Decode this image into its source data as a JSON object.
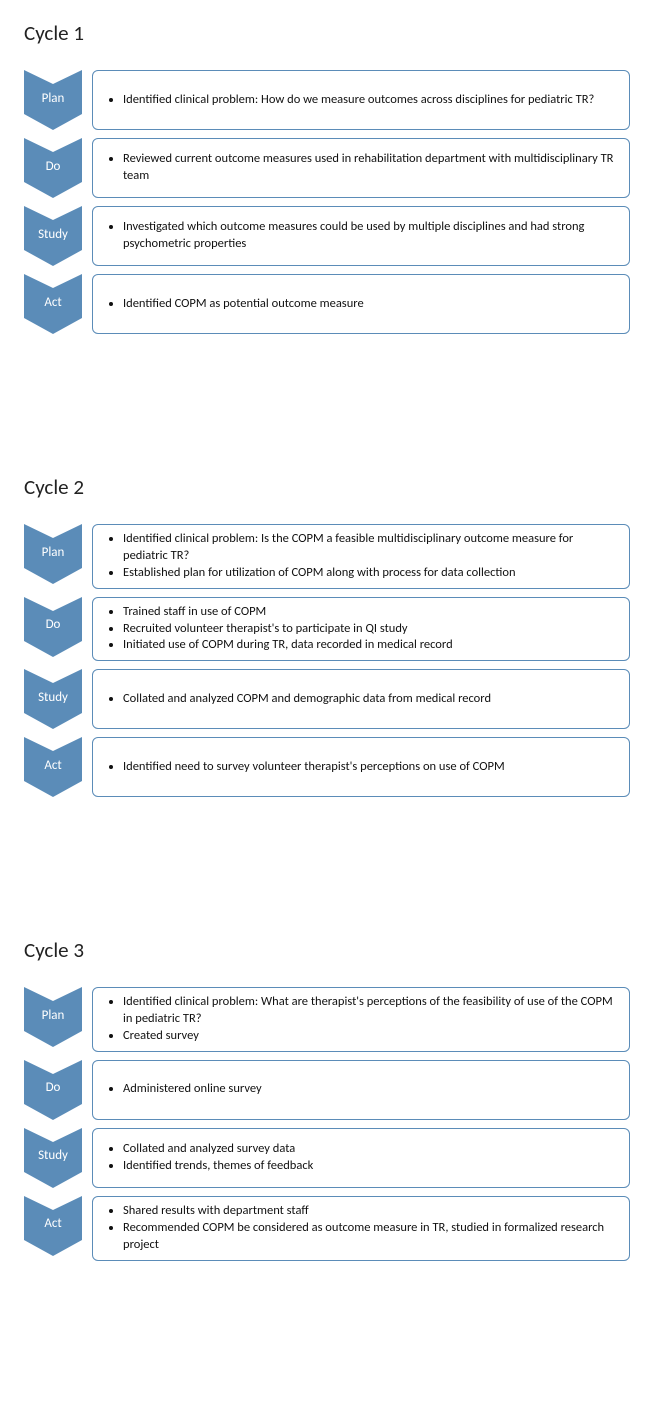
{
  "colors": {
    "chevron_fill": "#5b8cb8",
    "box_border": "#5b8cb8",
    "box_bg": "#ffffff",
    "chevron_text": "#ffffff",
    "title_color": "#222222",
    "bullet_color": "#111111"
  },
  "layout": {
    "chevron_width": 58,
    "chevron_height": 60,
    "box_radius": 6
  },
  "cycles": [
    {
      "title": "Cycle 1",
      "steps": [
        {
          "label": "Plan",
          "bullets": [
            "Identified clinical problem: How do we measure outcomes across disciplines for pediatric TR?"
          ]
        },
        {
          "label": "Do",
          "bullets": [
            "Reviewed current outcome measures used in rehabilitation department with multidisciplinary TR team"
          ]
        },
        {
          "label": "Study",
          "bullets": [
            "Investigated which outcome measures could be used by multiple disciplines and had strong psychometric properties"
          ]
        },
        {
          "label": "Act",
          "bullets": [
            "Identified COPM as potential outcome measure"
          ]
        }
      ]
    },
    {
      "title": "Cycle 2",
      "steps": [
        {
          "label": "Plan",
          "bullets": [
            "Identified clinical problem: Is the COPM a feasible multidisciplinary outcome measure for pediatric TR?",
            "Established plan for utilization of COPM along with process for data collection"
          ]
        },
        {
          "label": "Do",
          "bullets": [
            "Trained staff in use of COPM",
            "Recruited volunteer therapist's to participate in QI study",
            "Initiated use of COPM during TR, data recorded in medical record"
          ]
        },
        {
          "label": "Study",
          "bullets": [
            "Collated and analyzed  COPM and demographic data from medical record"
          ]
        },
        {
          "label": "Act",
          "bullets": [
            "Identified need to survey volunteer therapist's perceptions on use of COPM"
          ]
        }
      ]
    },
    {
      "title": "Cycle 3",
      "steps": [
        {
          "label": "Plan",
          "bullets": [
            "Identified clinical problem: What are therapist's perceptions of the feasibility of use of the COPM in pediatric TR?",
            "Created survey"
          ]
        },
        {
          "label": "Do",
          "bullets": [
            "Administered online survey"
          ]
        },
        {
          "label": "Study",
          "bullets": [
            "Collated and analyzed survey data",
            "Identified trends, themes of feedback"
          ]
        },
        {
          "label": "Act",
          "bullets": [
            "Shared results with department staff",
            "Recommended COPM be considered as outcome measure in TR, studied in formalized research project"
          ]
        }
      ]
    }
  ]
}
